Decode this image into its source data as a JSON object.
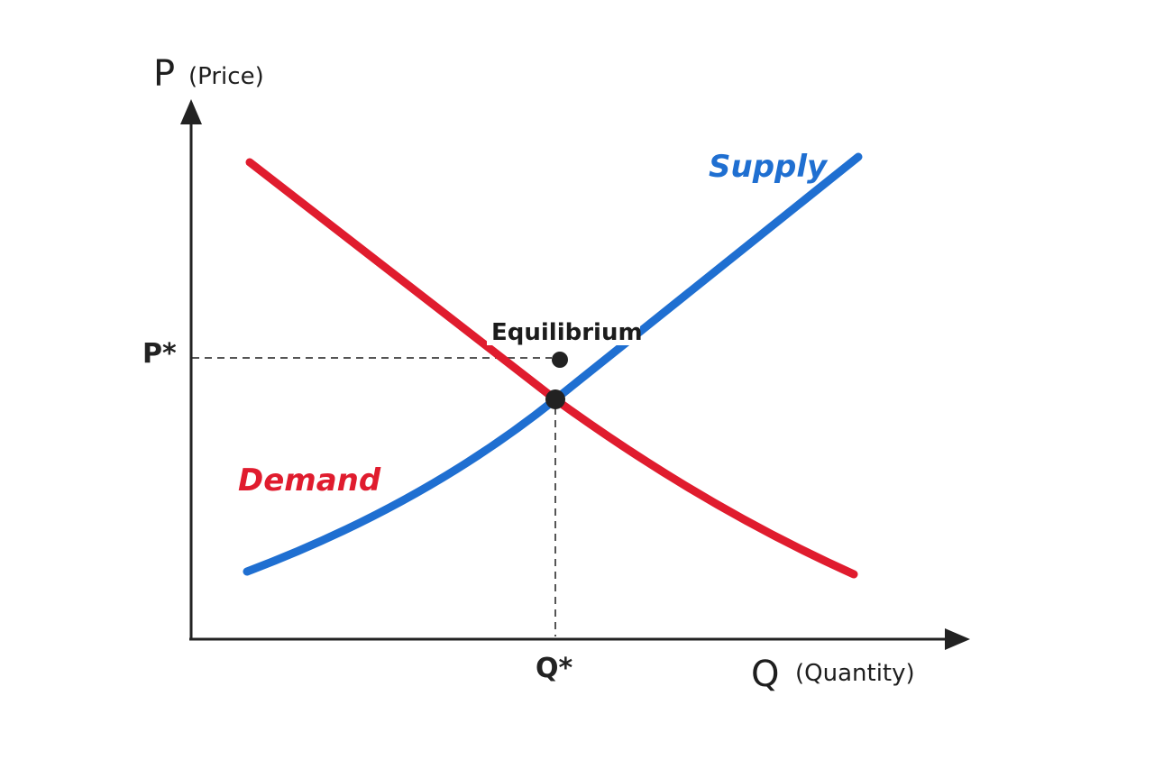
{
  "axes": {
    "y_letter": "P",
    "y_label": "(Price)",
    "x_letter": "Q",
    "x_label": "(Quantity)"
  },
  "markers": {
    "price": "P*",
    "quantity": "Q*"
  },
  "curves": {
    "demand": {
      "label": "Demand",
      "color": "#e01c2e"
    },
    "supply": {
      "label": "Supply",
      "color": "#1f6fd1"
    }
  },
  "annotation": {
    "label": "Equilibrium"
  },
  "colors": {
    "axis": "#222222",
    "guide": "#555555",
    "point": "#222222"
  }
}
